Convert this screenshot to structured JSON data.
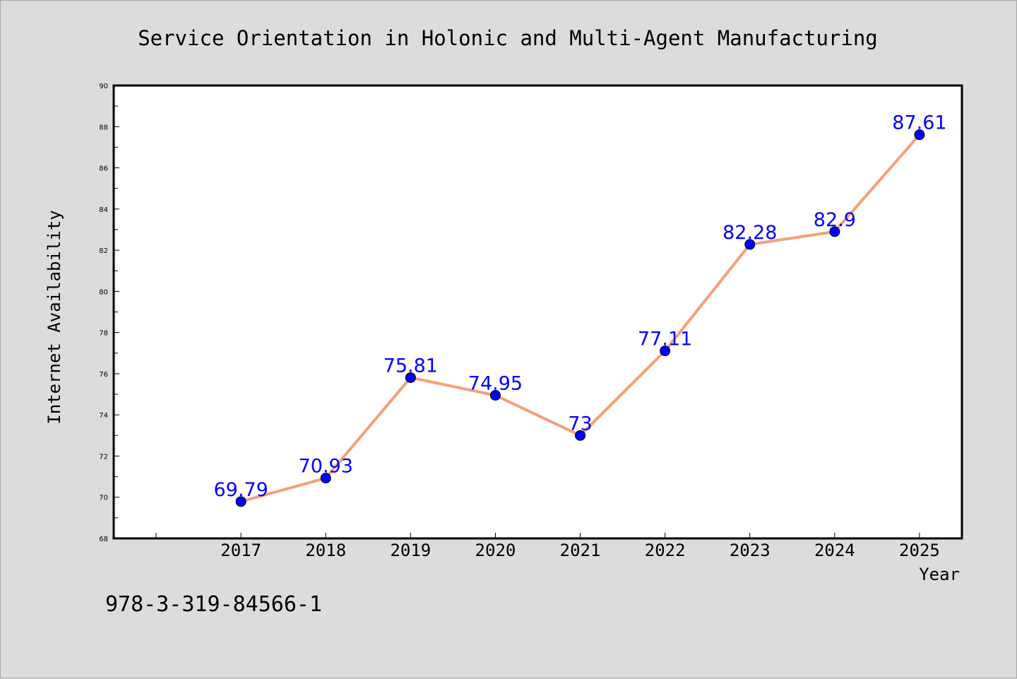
{
  "colors": {
    "background": "#dcdcdc",
    "plot_background": "#ffffff",
    "line": "#f4a07a",
    "marker": "#0000ff",
    "data_label": "#0000ff",
    "axis": "#000000"
  },
  "isbn": "978-3-319-84566-1",
  "chart_data": {
    "type": "line",
    "title": "Service Orientation in Holonic and Multi-Agent Manufacturing",
    "xlabel": "Year",
    "ylabel": "Internet Availability",
    "categories": [
      "2017",
      "2018",
      "2019",
      "2020",
      "2021",
      "2022",
      "2023",
      "2024",
      "2025"
    ],
    "series": [
      {
        "values": [
          69.79,
          70.93,
          75.81,
          74.95,
          73,
          77.11,
          82.28,
          82.9,
          87.61
        ],
        "labels": [
          "69.79",
          "70.93",
          "75.81",
          "74.95",
          "73",
          "77.11",
          "82.28",
          "82.9",
          "87.61"
        ]
      }
    ],
    "ylim": [
      68,
      90
    ],
    "yticks": [
      68,
      70,
      72,
      74,
      76,
      78,
      80,
      82,
      84,
      86,
      88,
      90
    ],
    "xlim": [
      2015.5,
      2025.5
    ],
    "grid": false,
    "legend": "none"
  }
}
